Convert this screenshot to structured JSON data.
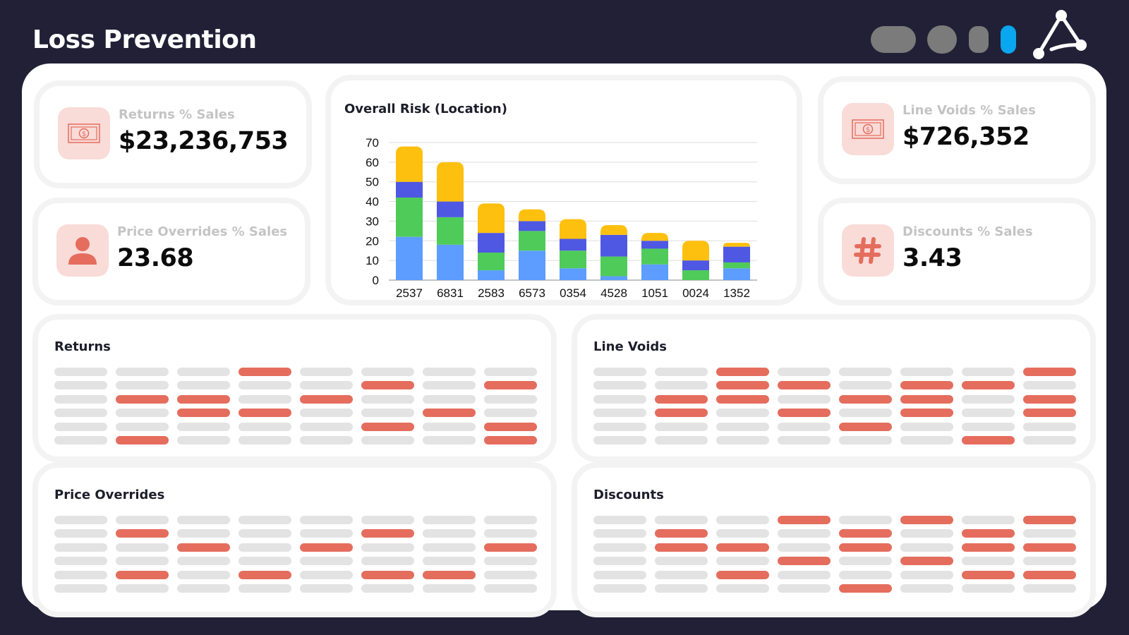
{
  "header": {
    "title": "Loss Prevention",
    "indicators": [
      {
        "name": "indicator-pill",
        "color": "#7b7b7b"
      },
      {
        "name": "indicator-circle",
        "color": "#7b7b7b"
      },
      {
        "name": "indicator-small",
        "color": "#7b7b7b"
      },
      {
        "name": "indicator-active",
        "color": "#0aa6ef"
      }
    ],
    "logo_icon": "network-triangle-logo"
  },
  "kpis": [
    {
      "label": "Returns % Sales",
      "value": "$23,236,753",
      "icon": "money-bill-icon"
    },
    {
      "label": "Price Overrides % Sales",
      "value": "23.68",
      "icon": "user-icon"
    },
    {
      "label": "Line Voids % Sales",
      "value": "$726,352",
      "icon": "money-bill-icon"
    },
    {
      "label": "Discounts % Sales",
      "value": "3.43",
      "icon": "hash-icon"
    }
  ],
  "colors": {
    "accent": "#e56d5d",
    "icon_bg": "#f9dbd8",
    "cell_off": "#e3e3e3"
  },
  "chart_data": {
    "type": "bar",
    "stacked": true,
    "title": "Overall Risk (Location)",
    "categories": [
      "2537",
      "6831",
      "2583",
      "6573",
      "0354",
      "4528",
      "1051",
      "0024",
      "1352"
    ],
    "series": [
      {
        "color": "#5c9dff",
        "values": [
          22,
          18,
          5,
          15,
          6,
          2,
          8,
          0,
          6
        ]
      },
      {
        "color": "#4fcb5a",
        "values": [
          20,
          14,
          9,
          10,
          9,
          10,
          8,
          5,
          3
        ]
      },
      {
        "color": "#4f58e2",
        "values": [
          8,
          8,
          10,
          5,
          6,
          11,
          4,
          5,
          8
        ]
      },
      {
        "color": "#fec00f",
        "values": [
          18,
          20,
          15,
          6,
          10,
          5,
          4,
          10,
          2
        ]
      }
    ],
    "ylim": [
      0,
      70
    ],
    "yticks": [
      "0",
      "10",
      "20",
      "30",
      "40",
      "50",
      "60",
      "70"
    ],
    "grid": true,
    "legend": "none"
  },
  "panels": [
    {
      "title": "Returns",
      "rows": [
        [
          0,
          0,
          0,
          1,
          0,
          0,
          0,
          0
        ],
        [
          0,
          0,
          0,
          0,
          0,
          1,
          0,
          1
        ],
        [
          0,
          1,
          1,
          0,
          1,
          0,
          0,
          0
        ],
        [
          0,
          0,
          1,
          1,
          0,
          0,
          1,
          0
        ],
        [
          0,
          0,
          0,
          0,
          0,
          1,
          0,
          1
        ],
        [
          0,
          1,
          0,
          0,
          0,
          0,
          0,
          1
        ]
      ]
    },
    {
      "title": "Line Voids",
      "rows": [
        [
          0,
          0,
          1,
          0,
          0,
          0,
          0,
          1
        ],
        [
          0,
          0,
          1,
          1,
          0,
          1,
          1,
          0
        ],
        [
          0,
          1,
          1,
          0,
          1,
          1,
          0,
          1
        ],
        [
          0,
          1,
          0,
          1,
          0,
          1,
          0,
          1
        ],
        [
          0,
          0,
          0,
          0,
          1,
          0,
          0,
          0
        ],
        [
          0,
          0,
          0,
          0,
          0,
          0,
          1,
          0
        ]
      ]
    },
    {
      "title": "Price Overrides",
      "rows": [
        [
          0,
          0,
          0,
          0,
          0,
          0,
          0,
          0
        ],
        [
          0,
          1,
          0,
          0,
          0,
          1,
          0,
          0
        ],
        [
          0,
          0,
          1,
          0,
          1,
          0,
          0,
          1
        ],
        [
          0,
          0,
          0,
          0,
          0,
          0,
          0,
          0
        ],
        [
          0,
          1,
          0,
          1,
          0,
          1,
          1,
          0
        ],
        [
          0,
          0,
          0,
          0,
          0,
          0,
          0,
          0
        ]
      ]
    },
    {
      "title": "Discounts",
      "rows": [
        [
          0,
          0,
          0,
          1,
          0,
          1,
          0,
          1
        ],
        [
          0,
          1,
          0,
          0,
          1,
          0,
          1,
          0
        ],
        [
          0,
          1,
          1,
          0,
          1,
          0,
          1,
          1
        ],
        [
          0,
          0,
          0,
          1,
          0,
          1,
          0,
          0
        ],
        [
          0,
          0,
          1,
          0,
          0,
          0,
          1,
          1
        ],
        [
          0,
          0,
          0,
          0,
          1,
          0,
          0,
          0
        ]
      ]
    }
  ]
}
